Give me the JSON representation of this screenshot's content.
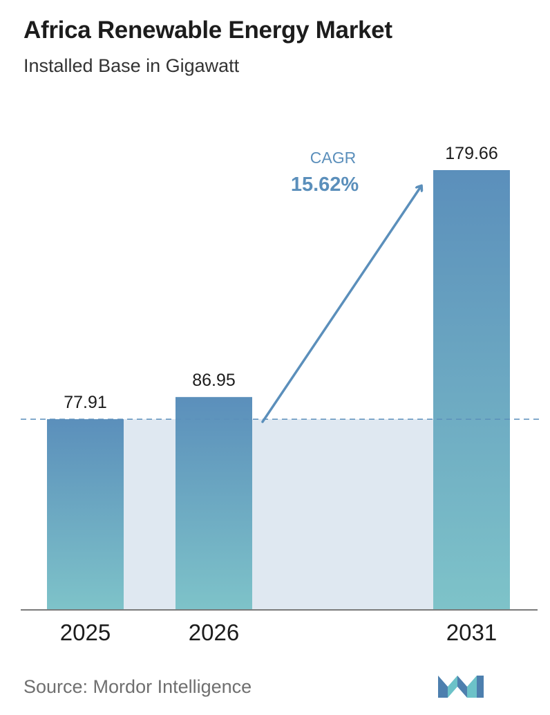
{
  "header": {
    "title": "Africa Renewable Energy Market",
    "subtitle": "Installed Base in Gigawatt"
  },
  "chart_data": {
    "type": "bar",
    "categories": [
      "2025",
      "2026",
      "2031"
    ],
    "values": [
      77.91,
      86.95,
      179.66
    ],
    "value_labels": [
      "77.91",
      "86.95",
      "179.66"
    ],
    "ylim": [
      0,
      179.66
    ],
    "grid": false,
    "annotation": {
      "label": "CAGR",
      "value": "15.62%"
    }
  },
  "footer": {
    "source": "Source:  Mordor Intelligence",
    "logo_icon": "mordor-intelligence-logo-icon"
  },
  "colors": {
    "bar_top": "#5b8fbb",
    "bar_bottom": "#7ec3c9",
    "band": "#dfe8f1",
    "arrow": "#5b8fbb",
    "baseline": "#7a7a7a",
    "logo_dark": "#4d7fae",
    "logo_light": "#6cc2c8"
  }
}
